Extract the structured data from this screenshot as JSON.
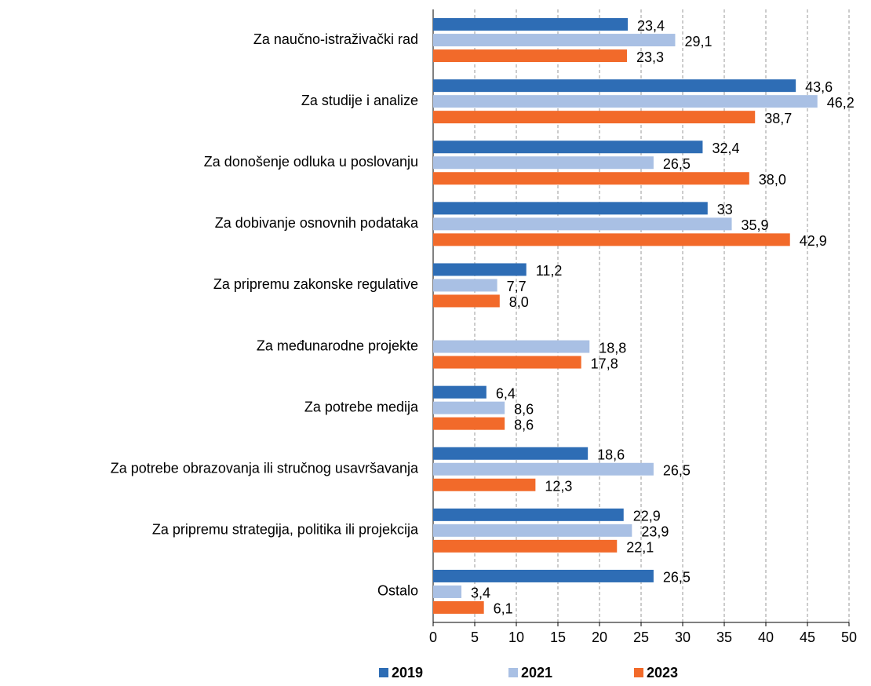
{
  "chart_data": {
    "type": "bar",
    "orientation": "horizontal",
    "categories": [
      "Za naučno-istraživački rad",
      "Za studije i analize",
      "Za donošenje odluka u poslovanju",
      "Za dobivanje osnovnih podataka",
      "Za pripremu zakonske regulative",
      "Za međunarodne projekte",
      "Za potrebe medija",
      "Za potrebe obrazovanja ili stručnog usavršavanja",
      "Za pripremu strategija, politika ili projekcija",
      "Ostalo"
    ],
    "series": [
      {
        "name": "2019",
        "color": "#2e6db5",
        "values": [
          23.4,
          43.6,
          32.4,
          33,
          11.2,
          null,
          6.4,
          18.6,
          22.9,
          26.5
        ],
        "value_labels": [
          "23,4",
          "43,6",
          "32,4",
          "33",
          "11,2",
          null,
          "6,4",
          "18,6",
          "22,9",
          "26,5"
        ]
      },
      {
        "name": "2021",
        "color": "#a9c0e4",
        "values": [
          29.1,
          46.2,
          26.5,
          35.9,
          7.7,
          18.8,
          8.6,
          26.5,
          23.9,
          3.4
        ],
        "value_labels": [
          "29,1",
          "46,2",
          "26,5",
          "35,9",
          "7,7",
          "18,8",
          "8,6",
          "26,5",
          "23,9",
          "3,4"
        ]
      },
      {
        "name": "2023",
        "color": "#f26a2a",
        "values": [
          23.3,
          38.7,
          38.0,
          42.9,
          8.0,
          17.8,
          8.6,
          12.3,
          22.1,
          6.1
        ],
        "value_labels": [
          "23,3",
          "38,7",
          "38,0",
          "42,9",
          "8,0",
          "17,8",
          "8,6",
          "12,3",
          "22,1",
          "6,1"
        ]
      }
    ],
    "xlim": [
      0,
      50
    ],
    "xticks": [
      0,
      5,
      10,
      15,
      20,
      25,
      30,
      35,
      40,
      45,
      50
    ],
    "grid": true,
    "legend": "bottom"
  }
}
